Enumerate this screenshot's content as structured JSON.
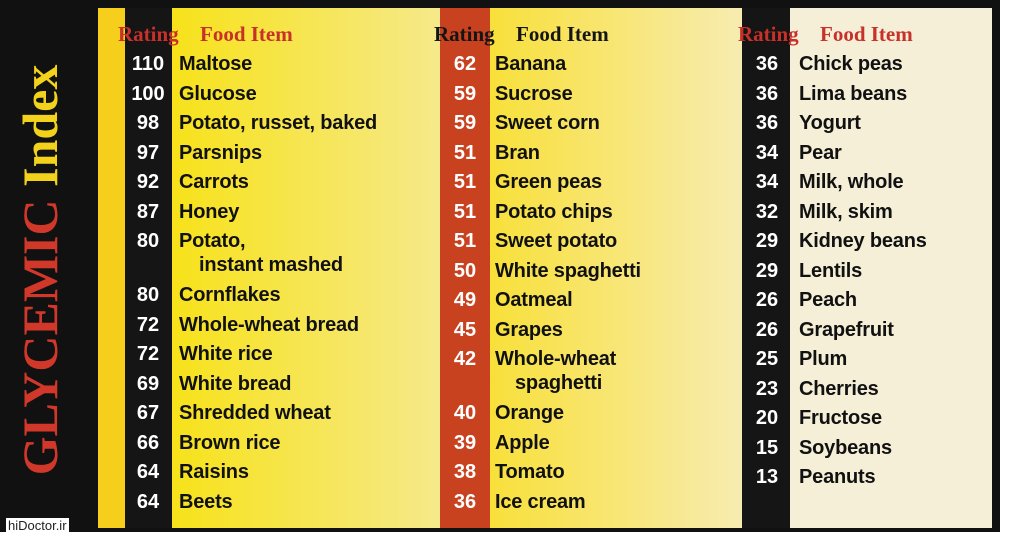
{
  "title": {
    "word1": "GLYCEMIC",
    "word2": "Index"
  },
  "columns": [
    {
      "header": {
        "rating": "Rating",
        "food": "Food Item"
      },
      "rows": [
        [
          "110",
          "Maltose"
        ],
        [
          "100",
          "Glucose"
        ],
        [
          "98",
          "Potato, russet, baked"
        ],
        [
          "97",
          "Parsnips"
        ],
        [
          "92",
          "Carrots"
        ],
        [
          "87",
          "Honey"
        ],
        [
          "80",
          "Potato,\ninstant mashed"
        ],
        [
          "80",
          "Cornflakes"
        ],
        [
          "72",
          "Whole-wheat bread"
        ],
        [
          "72",
          "White rice"
        ],
        [
          "69",
          "White bread"
        ],
        [
          "67",
          "Shredded wheat"
        ],
        [
          "66",
          "Brown rice"
        ],
        [
          "64",
          "Raisins"
        ],
        [
          "64",
          "Beets"
        ]
      ]
    },
    {
      "header": {
        "rating": "Rating",
        "food": "Food Item"
      },
      "rows": [
        [
          "62",
          "Banana"
        ],
        [
          "59",
          "Sucrose"
        ],
        [
          "59",
          "Sweet corn"
        ],
        [
          "51",
          "Bran"
        ],
        [
          "51",
          "Green peas"
        ],
        [
          "51",
          "Potato chips"
        ],
        [
          "51",
          "Sweet potato"
        ],
        [
          "50",
          "White spaghetti"
        ],
        [
          "49",
          "Oatmeal"
        ],
        [
          "45",
          "Grapes"
        ],
        [
          "42",
          "Whole-wheat\nspaghetti"
        ],
        [
          "40",
          "Orange"
        ],
        [
          "39",
          "Apple"
        ],
        [
          "38",
          "Tomato"
        ],
        [
          "36",
          "Ice cream"
        ]
      ]
    },
    {
      "header": {
        "rating": "Rating",
        "food": "Food Item"
      },
      "rows": [
        [
          "36",
          "Chick peas"
        ],
        [
          "36",
          "Lima beans"
        ],
        [
          "36",
          "Yogurt"
        ],
        [
          "34",
          "Pear"
        ],
        [
          "34",
          "Milk, whole"
        ],
        [
          "32",
          "Milk, skim"
        ],
        [
          "29",
          "Kidney beans"
        ],
        [
          "29",
          "Lentils"
        ],
        [
          "26",
          "Peach"
        ],
        [
          "26",
          "Grapefruit"
        ],
        [
          "25",
          "Plum"
        ],
        [
          "23",
          "Cherries"
        ],
        [
          "20",
          "Fructose"
        ],
        [
          "15",
          "Soybeans"
        ],
        [
          "13",
          "Peanuts"
        ]
      ]
    }
  ],
  "watermark": "hiDoctor.ir"
}
